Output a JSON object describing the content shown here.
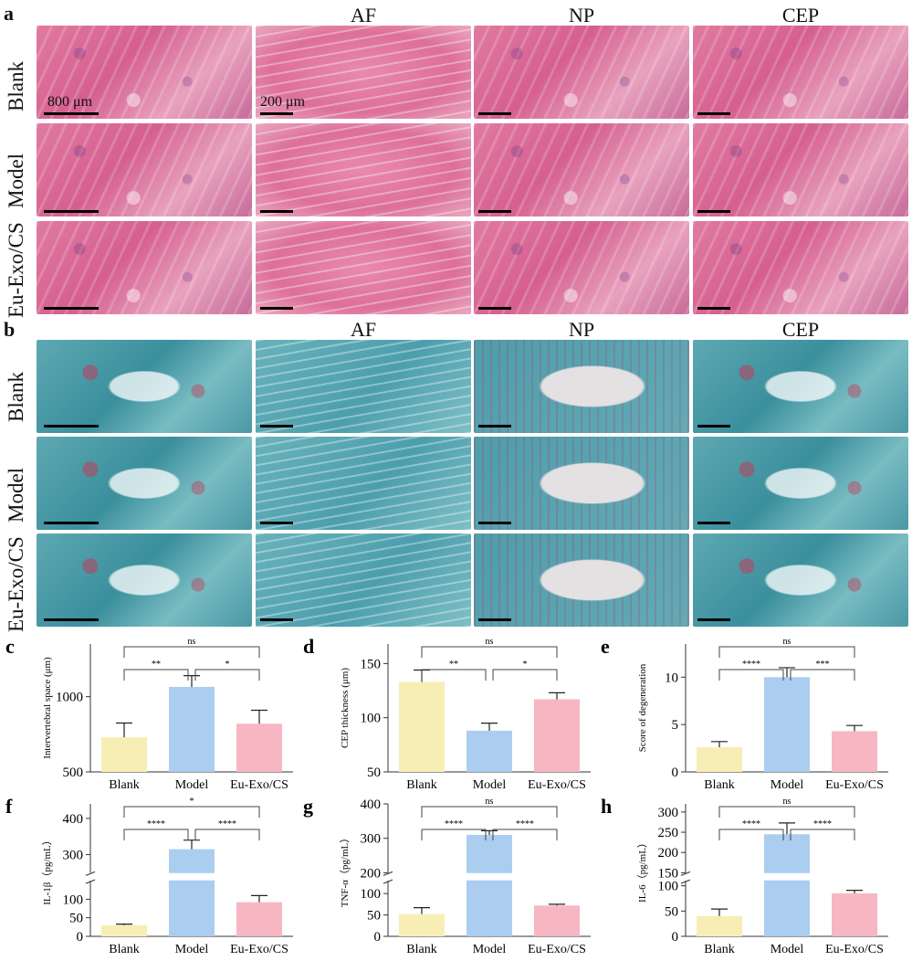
{
  "panel_a": {
    "label": "a",
    "columns": [
      "AF",
      "NP",
      "CEP"
    ],
    "rows": [
      "Blank",
      "Model",
      "Eu-Exo/CS"
    ],
    "scale_800": "800 μm",
    "scale_200": "200 μm"
  },
  "panel_b": {
    "label": "b",
    "columns": [
      "AF",
      "NP",
      "CEP"
    ],
    "rows": [
      "Blank",
      "Model",
      "Eu-Exo/CS"
    ]
  },
  "colors": {
    "blank": "#f6eeb4",
    "model": "#abcdf0",
    "euexo": "#f6b7c2"
  },
  "chart_data": [
    {
      "id": "c",
      "label": "c",
      "type": "bar",
      "categories": [
        "Blank",
        "Model",
        "Eu-Exo/CS"
      ],
      "values": [
        730,
        1065,
        820
      ],
      "errors": [
        95,
        75,
        90
      ],
      "ylabel": "Intervertebral space (μm)",
      "ylim": [
        500,
        1350
      ],
      "yticks": [
        500,
        1000
      ],
      "sig": [
        {
          "from": 0,
          "to": 2,
          "text": "ns"
        },
        {
          "from": 0,
          "to": 1,
          "text": "**"
        },
        {
          "from": 1,
          "to": 2,
          "text": "*"
        }
      ]
    },
    {
      "id": "d",
      "label": "d",
      "type": "bar",
      "categories": [
        "Blank",
        "Model",
        "Eu-Exo/CS"
      ],
      "values": [
        133,
        88,
        117
      ],
      "errors": [
        11,
        7,
        6
      ],
      "ylabel": "CEP thickness (μm)",
      "ylim": [
        50,
        168
      ],
      "yticks": [
        50,
        100,
        150
      ],
      "sig": [
        {
          "from": 0,
          "to": 2,
          "text": "ns"
        },
        {
          "from": 0,
          "to": 1,
          "text": "**"
        },
        {
          "from": 1,
          "to": 2,
          "text": "*"
        }
      ]
    },
    {
      "id": "e",
      "label": "e",
      "type": "bar",
      "categories": [
        "Blank",
        "Model",
        "Eu-Exo/CS"
      ],
      "values": [
        2.6,
        10,
        4.3
      ],
      "errors": [
        0.6,
        1.0,
        0.6
      ],
      "ylabel": "Score of degeneration",
      "ylim": [
        0,
        13.5
      ],
      "yticks": [
        0,
        5,
        10
      ],
      "sig": [
        {
          "from": 0,
          "to": 2,
          "text": "ns"
        },
        {
          "from": 0,
          "to": 1,
          "text": "****"
        },
        {
          "from": 1,
          "to": 2,
          "text": "***"
        }
      ]
    },
    {
      "id": "f",
      "label": "f",
      "type": "bar",
      "categories": [
        "Blank",
        "Model",
        "Eu-Exo/CS"
      ],
      "values": [
        30,
        315,
        92
      ],
      "errors": [
        3,
        25,
        18
      ],
      "ylabel": "IL-1β（pg/mL）",
      "axis_break": [
        150,
        250
      ],
      "ylim": [
        0,
        440
      ],
      "yticks": [
        0,
        50,
        100,
        300,
        400
      ],
      "sig": [
        {
          "from": 0,
          "to": 2,
          "text": "*"
        },
        {
          "from": 0,
          "to": 1,
          "text": "****"
        },
        {
          "from": 1,
          "to": 2,
          "text": "****"
        }
      ]
    },
    {
      "id": "g",
      "label": "g",
      "type": "bar",
      "categories": [
        "Blank",
        "Model",
        "Eu-Exo/CS"
      ],
      "values": [
        52,
        310,
        72
      ],
      "errors": [
        15,
        12,
        3
      ],
      "ylabel": "TNF-α（pg/mL）",
      "axis_break": [
        130,
        200
      ],
      "ylim": [
        0,
        400
      ],
      "yticks": [
        0,
        50,
        100,
        200,
        300,
        400
      ],
      "sig": [
        {
          "from": 0,
          "to": 2,
          "text": "ns"
        },
        {
          "from": 0,
          "to": 1,
          "text": "****"
        },
        {
          "from": 1,
          "to": 2,
          "text": "****"
        }
      ]
    },
    {
      "id": "h",
      "label": "h",
      "type": "bar",
      "categories": [
        "Blank",
        "Model",
        "Eu-Exo/CS"
      ],
      "values": [
        40,
        245,
        85
      ],
      "errors": [
        14,
        28,
        6
      ],
      "ylabel": "IL-6（pg/mL）",
      "axis_break": [
        110,
        150
      ],
      "ylim": [
        0,
        320
      ],
      "yticks": [
        0,
        50,
        100,
        150,
        200,
        250,
        300
      ],
      "sig": [
        {
          "from": 0,
          "to": 2,
          "text": "ns"
        },
        {
          "from": 0,
          "to": 1,
          "text": "****"
        },
        {
          "from": 1,
          "to": 2,
          "text": "****"
        }
      ]
    }
  ]
}
